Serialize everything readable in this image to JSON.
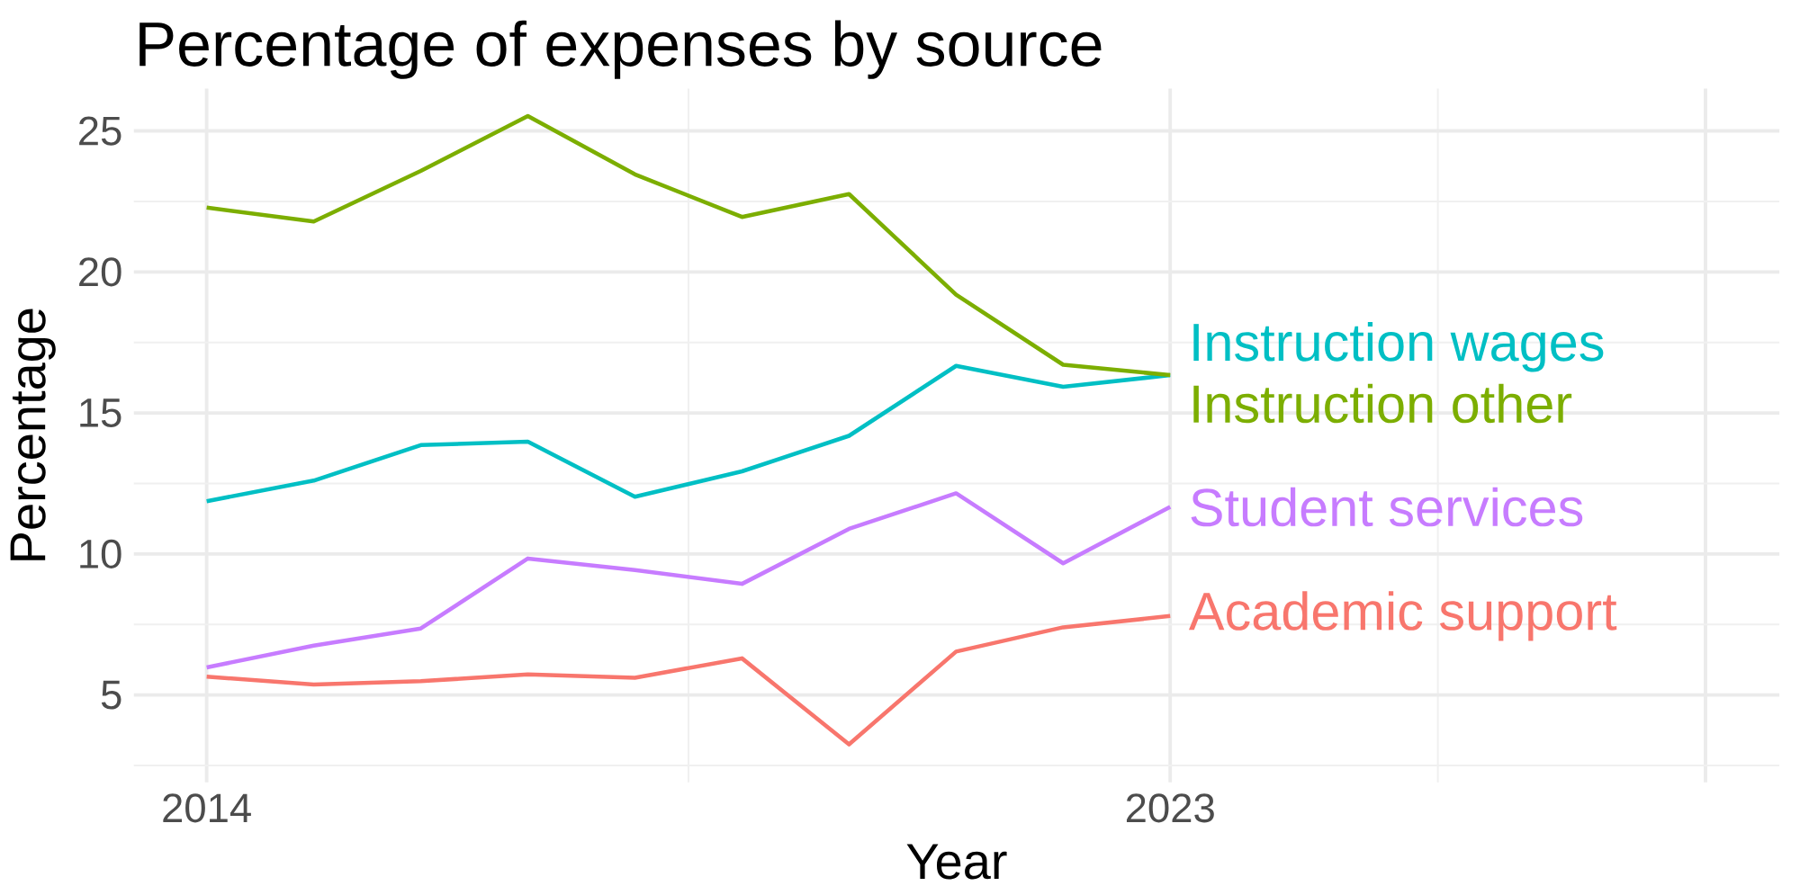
{
  "chart_data": {
    "type": "line",
    "title": "Percentage of expenses by source",
    "xlabel": "Year",
    "ylabel": "Percentage",
    "x": [
      2014,
      2015,
      2016,
      2017,
      2018,
      2019,
      2020,
      2021,
      2022,
      2023
    ],
    "series": [
      {
        "name": "Instruction wages",
        "color": "#00BFC4",
        "values": [
          11.87,
          12.6,
          13.86,
          13.98,
          12.03,
          12.93,
          14.19,
          16.67,
          15.93,
          16.34
        ]
      },
      {
        "name": "Instruction other",
        "color": "#7CAE00",
        "values": [
          22.28,
          21.79,
          23.58,
          25.53,
          23.46,
          21.95,
          22.76,
          19.19,
          16.71,
          16.34
        ]
      },
      {
        "name": "Student services",
        "color": "#C77CFF",
        "values": [
          5.98,
          6.75,
          7.36,
          9.84,
          9.43,
          8.94,
          10.89,
          12.15,
          9.67,
          11.67
        ]
      },
      {
        "name": "Academic support",
        "color": "#F8766D",
        "values": [
          5.65,
          5.37,
          5.49,
          5.73,
          5.61,
          6.3,
          3.25,
          6.54,
          7.4,
          7.8
        ]
      }
    ],
    "xlim": [
      2013.32,
      2028.69
    ],
    "ylim": [
      1.9,
      26.5
    ],
    "xticks": [
      2014,
      2023,
      {
        "value": 2028,
        "label": null
      }
    ],
    "yticks": [
      5,
      10,
      15,
      20,
      25
    ],
    "grid": true,
    "legend": false,
    "marker": "none",
    "line_style": "solid"
  }
}
